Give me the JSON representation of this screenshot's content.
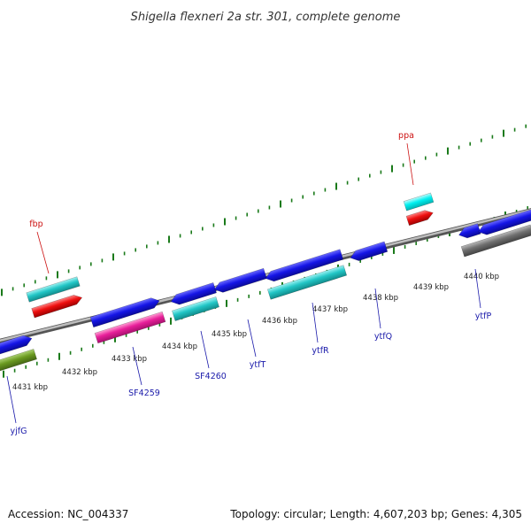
{
  "title": "Shigella flexneri 2a str. 301, complete genome",
  "footer": {
    "accession": "Accession: NC_004337",
    "summary": "Topology: circular; Length: 4,607,203 bp; Genes: 4,305"
  },
  "scale_labels": [
    "4431 kbp",
    "4432 kbp",
    "4433 kbp",
    "4434 kbp",
    "4435 kbp",
    "4436 kbp",
    "4437 kbp",
    "4438 kbp",
    "4439 kbp",
    "4440 kbp"
  ],
  "colors": {
    "blue": "#1010e0",
    "cyan": "#20c8c8",
    "cyan_bright": "#00f0f0",
    "red": "#ee1010",
    "magenta": "#e8209a",
    "olive": "#6a9a20",
    "gray": "#707070",
    "tick_green": "#1a7a1a",
    "label_blue": "#1a1aaa",
    "label_red": "#cc1111"
  },
  "genes": {
    "top": [
      {
        "label": "fbp",
        "color": "red"
      },
      {
        "label": "ppa",
        "color": "red"
      }
    ],
    "bottom": [
      {
        "label": "yjfG",
        "color": "blue"
      },
      {
        "label": "SF4259",
        "color": "blue"
      },
      {
        "label": "SF4260",
        "color": "blue"
      },
      {
        "label": "ytfT",
        "color": "blue"
      },
      {
        "label": "ytfR",
        "color": "blue"
      },
      {
        "label": "ytfQ",
        "color": "blue"
      },
      {
        "label": "ytfP",
        "color": "blue"
      }
    ]
  }
}
